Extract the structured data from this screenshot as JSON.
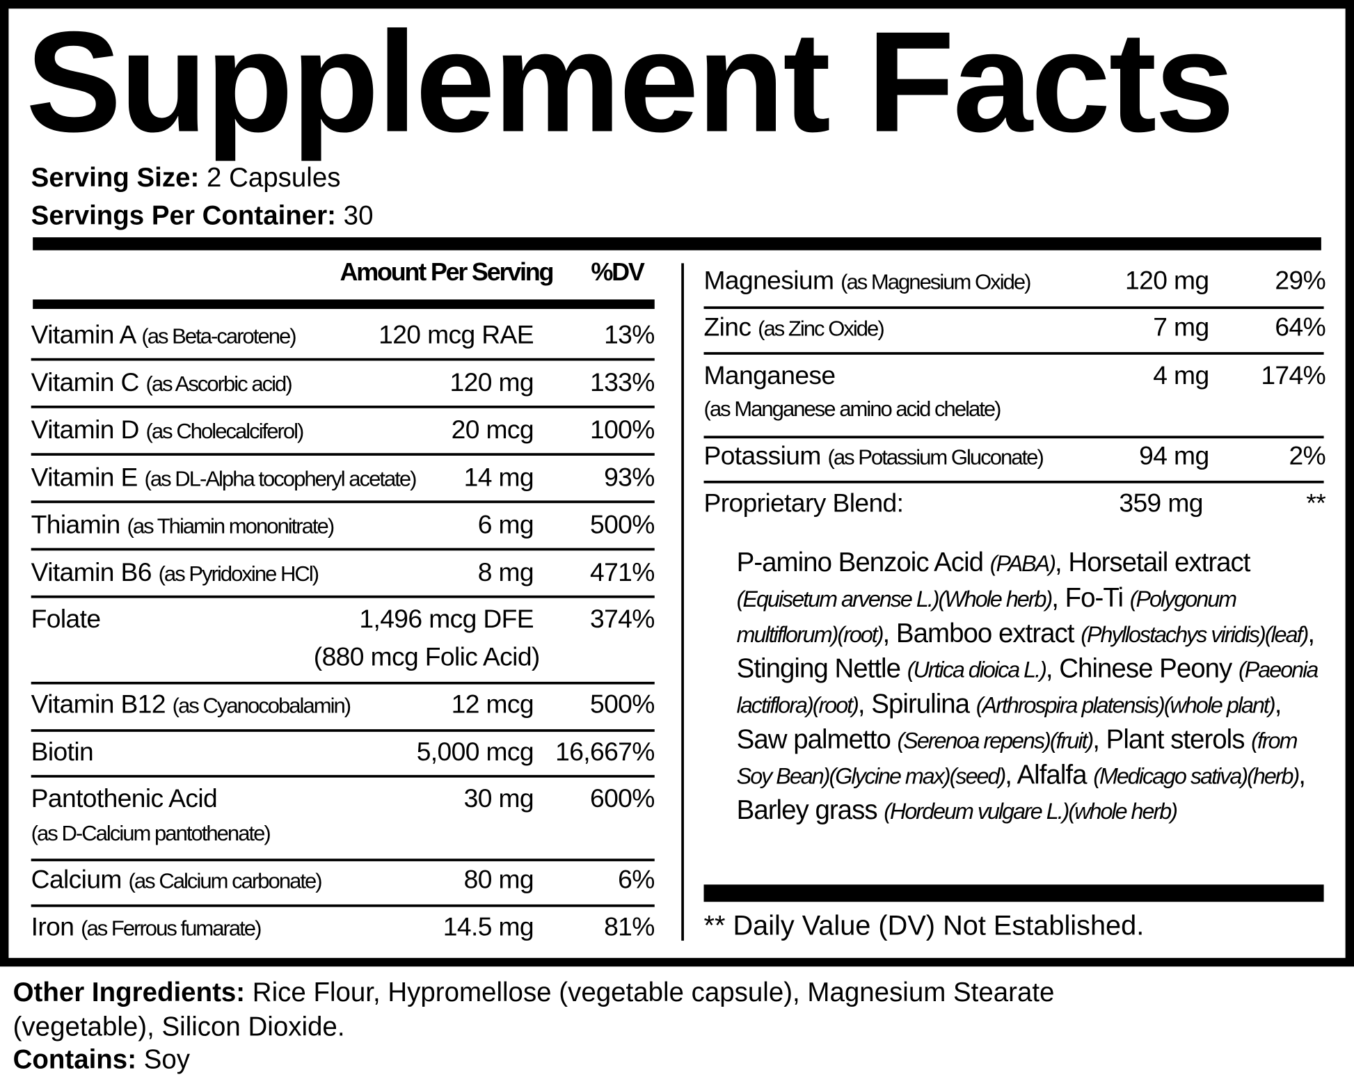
{
  "title": "Supplement Facts",
  "serving": {
    "size_label": "Serving Size:",
    "size_value": "2 Capsules",
    "per_container_label": "Servings Per Container:",
    "per_container_value": "30"
  },
  "headers": {
    "amount": "Amount Per Serving",
    "dv": "%DV"
  },
  "left_rows": [
    {
      "name": "Vitamin A",
      "source": "(as Beta-carotene)",
      "amount": "120 mcg RAE",
      "dv": "13%"
    },
    {
      "name": "Vitamin C",
      "source": "(as Ascorbic acid)",
      "amount": "120 mg",
      "dv": "133%"
    },
    {
      "name": "Vitamin D",
      "source": "(as Cholecalciferol)",
      "amount": "20 mcg",
      "dv": "100%"
    },
    {
      "name": "Vitamin E",
      "source": "(as DL-Alpha tocopheryl acetate)",
      "amount": "14 mg",
      "dv": "93%"
    },
    {
      "name": "Thiamin",
      "source": "(as Thiamin mononitrate)",
      "amount": "6 mg",
      "dv": "500%"
    },
    {
      "name": "Vitamin B6",
      "source": "(as Pyridoxine HCl)",
      "amount": "8 mg",
      "dv": "471%"
    },
    {
      "name": "Folate",
      "source": "",
      "amount": "1,496 mcg DFE",
      "amount2": "(880 mcg Folic Acid)",
      "dv": "374%"
    },
    {
      "name": "Vitamin B12",
      "source": "(as Cyanocobalamin)",
      "amount": "12 mcg",
      "dv": "500%"
    },
    {
      "name": "Biotin",
      "source": "",
      "amount": "5,000 mcg",
      "dv": "16,667%"
    },
    {
      "name": "Pantothenic Acid",
      "source": "(as  D-Calcium pantothenate)",
      "amount": "30 mg",
      "dv": "600%"
    },
    {
      "name": "Calcium",
      "source": "(as Calcium carbonate)",
      "amount": "80 mg",
      "dv": "6%"
    },
    {
      "name": "Iron",
      "source": "(as Ferrous fumarate)",
      "amount": "14.5 mg",
      "dv": "81%"
    }
  ],
  "right_rows": [
    {
      "name": "Magnesium",
      "source": "(as Magnesium Oxide)",
      "amount": "120 mg",
      "dv": "29%"
    },
    {
      "name": "Zinc",
      "source": "(as Zinc Oxide)",
      "amount": "7 mg",
      "dv": "64%"
    },
    {
      "name": "Manganese",
      "source": "(as Manganese amino acid chelate)",
      "amount": "4 mg",
      "dv": "174%"
    },
    {
      "name": "Potassium",
      "source": "(as Potassium Gluconate)",
      "amount": "94 mg",
      "dv": "2%"
    },
    {
      "name": "Proprietary Blend:",
      "source": "",
      "amount": "359 mg",
      "dv": "**"
    }
  ],
  "blend_parts": [
    {
      "t": "P-amino Benzoic Acid ",
      "i": false
    },
    {
      "t": "(PABA)",
      "i": true
    },
    {
      "t": ", Horsetail extract ",
      "i": false
    },
    {
      "t": "(Equisetum arvense L.)(Whole herb)",
      "i": true
    },
    {
      "t": ", Fo-Ti ",
      "i": false
    },
    {
      "t": "(Polygonum multiflorum)(root)",
      "i": true
    },
    {
      "t": ", Bamboo extract ",
      "i": false
    },
    {
      "t": "(Phyllostachys viridis)(leaf)",
      "i": true
    },
    {
      "t": ", Stinging Nettle  ",
      "i": false
    },
    {
      "t": "(Urtica dioica L.)",
      "i": true
    },
    {
      "t": ", Chinese Peony ",
      "i": false
    },
    {
      "t": "(Paeonia lactiflora)(root)",
      "i": true
    },
    {
      "t": ", Spirulina ",
      "i": false
    },
    {
      "t": "(Arthrospira platensis)(whole plant)",
      "i": true
    },
    {
      "t": ", Saw palmetto ",
      "i": false
    },
    {
      "t": "(Serenoa repens)(fruit)",
      "i": true
    },
    {
      "t": ", Plant sterols ",
      "i": false
    },
    {
      "t": "(from Soy Bean)(Glycine max)(seed)",
      "i": true
    },
    {
      "t": ", Alfalfa ",
      "i": false
    },
    {
      "t": "(Medicago sativa)(herb)",
      "i": true
    },
    {
      "t": ", Barley grass ",
      "i": false
    },
    {
      "t": "(Hordeum vulgare L.)(whole herb)",
      "i": true
    }
  ],
  "dv_note": "** Daily Value (DV) Not Established.",
  "other": {
    "label": "Other Ingredients:",
    "value": "Rice Flour, Hypromellose (vegetable capsule), Magnesium Stearate",
    "value2": "(vegetable), Silicon Dioxide.",
    "contains_label": "Contains:",
    "contains_value": "Soy"
  }
}
